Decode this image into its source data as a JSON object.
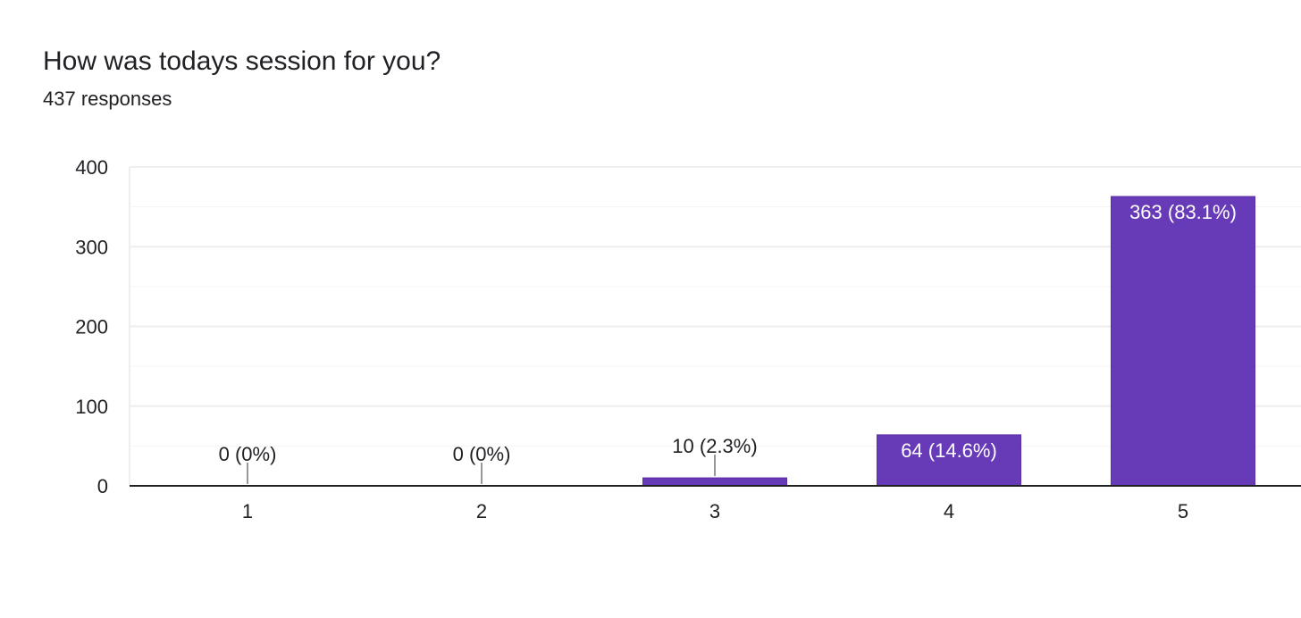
{
  "question": {
    "title": "How was todays session for you?",
    "response_count": "437 responses"
  },
  "colors": {
    "bar": "#673ab7",
    "bar_label_inside": "#ffffff",
    "bar_label_outside": "#202124",
    "gridline": "#eeeeee",
    "minor_gridline": "#f5f5f5",
    "axis": "#202124",
    "leader_line": "#757575"
  },
  "chart_data": {
    "type": "bar",
    "title": "",
    "xlabel": "",
    "ylabel": "",
    "categories": [
      "1",
      "2",
      "3",
      "4",
      "5"
    ],
    "values": [
      0,
      0,
      10,
      64,
      363
    ],
    "data_labels": [
      "0 (0%)",
      "0 (0%)",
      "10 (2.3%)",
      "64 (14.6%)",
      "363 (83.1%)"
    ],
    "ylim": [
      0,
      400
    ],
    "yticks": [
      0,
      100,
      200,
      300,
      400
    ],
    "grid": true,
    "legend": "none"
  }
}
